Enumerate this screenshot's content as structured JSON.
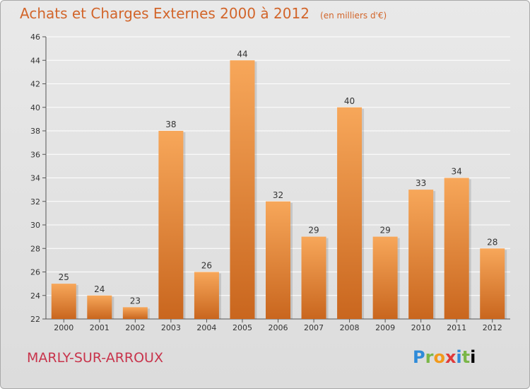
{
  "title": "Achats et Charges Externes 2000 à 2012",
  "subtitle": "(en milliers d'€)",
  "location": "MARLY-SUR-ARROUX",
  "logo_letters": [
    "P",
    "r",
    "o",
    "x",
    "i",
    "t",
    "i"
  ],
  "colors": {
    "title": "#d2652a",
    "location": "#c8334b",
    "bar_light": "#f7a75a",
    "bar_dark": "#c9661e",
    "grid": "#ffffff"
  },
  "chart_data": {
    "type": "bar",
    "categories": [
      "2000",
      "2001",
      "2002",
      "2003",
      "2004",
      "2005",
      "2006",
      "2007",
      "2008",
      "2009",
      "2010",
      "2011",
      "2012"
    ],
    "values": [
      25,
      24,
      23,
      38,
      26,
      44,
      32,
      29,
      40,
      29,
      33,
      34,
      28
    ],
    "ylim": [
      22,
      46
    ],
    "yticks": [
      22,
      24,
      26,
      28,
      30,
      32,
      34,
      36,
      38,
      40,
      42,
      44,
      46
    ],
    "grid": true,
    "xlabel": "",
    "ylabel": ""
  }
}
